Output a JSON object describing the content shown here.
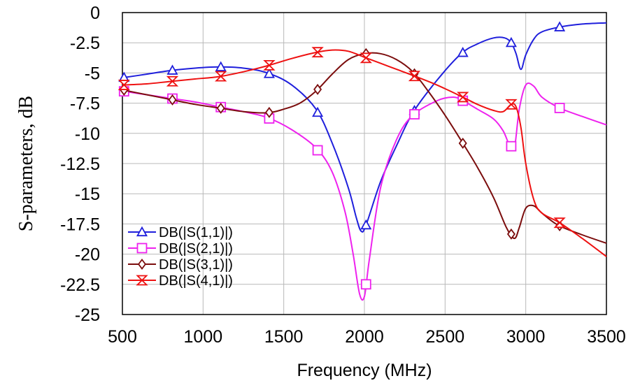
{
  "chart_data": {
    "type": "line",
    "xlabel": "Frequency (MHz)",
    "ylabel": "S-parameters, dB",
    "xlim": [
      500,
      3500
    ],
    "ylim": [
      -25,
      0
    ],
    "x_ticks": [
      500,
      1000,
      1500,
      2000,
      2500,
      3000,
      3500
    ],
    "x_tick_labels": [
      "500",
      "1000",
      "1500",
      "2000",
      "2500",
      "3000",
      "3500"
    ],
    "y_ticks": [
      0,
      -2.5,
      -5,
      -7.5,
      -10,
      -12.5,
      -15,
      -17.5,
      -20,
      -22.5,
      -25
    ],
    "y_tick_labels": [
      "0",
      "-2.5",
      "-5",
      "-7.5",
      "-10",
      "-12.5",
      "-15",
      "-17.5",
      "-20",
      "-22.5",
      "-25"
    ],
    "grid": true,
    "legend_position": "bottom-left",
    "series": [
      {
        "name": "DB(|S(1,1)|)",
        "color": "#1f1fdc",
        "marker": "triangle",
        "x": [
          500,
          650,
          800,
          950,
          1100,
          1250,
          1400,
          1550,
          1700,
          1800,
          1900,
          1950,
          1980,
          2010,
          2100,
          2200,
          2300,
          2450,
          2600,
          2700,
          2800,
          2870,
          2910,
          2940,
          2970,
          3000,
          3050,
          3100,
          3210,
          3350,
          3500
        ],
        "y": [
          -5.4,
          -5.1,
          -4.8,
          -4.6,
          -4.5,
          -4.6,
          -5.0,
          -6.0,
          -8.0,
          -10.8,
          -14.5,
          -17.0,
          -18.1,
          -17.6,
          -14.0,
          -11.0,
          -8.3,
          -5.6,
          -3.4,
          -2.6,
          -2.1,
          -2.1,
          -2.5,
          -3.4,
          -4.7,
          -3.5,
          -2.2,
          -1.6,
          -1.2,
          -0.95,
          -0.85
        ]
      },
      {
        "name": "DB(|S(2,1)|)",
        "color": "#ee22ee",
        "marker": "square",
        "x": [
          500,
          650,
          800,
          950,
          1100,
          1250,
          1400,
          1550,
          1700,
          1800,
          1880,
          1930,
          1970,
          2000,
          2030,
          2100,
          2200,
          2300,
          2450,
          2550,
          2610,
          2700,
          2800,
          2860,
          2900,
          2930,
          2960,
          3000,
          3050,
          3100,
          3210,
          3350,
          3500
        ],
        "y": [
          -6.5,
          -6.8,
          -7.1,
          -7.4,
          -7.8,
          -8.2,
          -8.7,
          -9.7,
          -11.2,
          -13.2,
          -16.5,
          -20.0,
          -23.3,
          -23.5,
          -20.5,
          -14.5,
          -10.5,
          -8.5,
          -7.3,
          -7.0,
          -7.3,
          -8.0,
          -8.8,
          -9.8,
          -11.0,
          -11.2,
          -8.0,
          -6.0,
          -6.1,
          -7.0,
          -7.9,
          -8.6,
          -9.3
        ]
      },
      {
        "name": "DB(|S(3,1)|)",
        "color": "#7b0d0d",
        "marker": "diamond",
        "x": [
          500,
          650,
          800,
          950,
          1100,
          1250,
          1400,
          1500,
          1600,
          1700,
          1800,
          1900,
          2000,
          2100,
          2200,
          2300,
          2400,
          2500,
          2600,
          2700,
          2800,
          2880,
          2930,
          2960,
          3000,
          3050,
          3100,
          3200,
          3350,
          3500
        ],
        "y": [
          -6.4,
          -6.8,
          -7.2,
          -7.6,
          -7.9,
          -8.2,
          -8.3,
          -8.0,
          -7.5,
          -6.5,
          -5.1,
          -3.9,
          -3.4,
          -3.4,
          -3.9,
          -4.9,
          -6.6,
          -8.5,
          -10.6,
          -12.8,
          -15.3,
          -17.8,
          -18.7,
          -17.8,
          -16.2,
          -16.0,
          -16.6,
          -17.6,
          -18.4,
          -19.1
        ]
      },
      {
        "name": "DB(|S(4,1)|)",
        "color": "#ee1111",
        "marker": "hourglass",
        "x": [
          500,
          650,
          800,
          950,
          1100,
          1250,
          1400,
          1550,
          1700,
          1800,
          1900,
          2000,
          2100,
          2200,
          2300,
          2450,
          2610,
          2700,
          2800,
          2860,
          2910,
          2940,
          2970,
          3000,
          3050,
          3100,
          3210,
          3350,
          3500
        ],
        "y": [
          -6.0,
          -5.9,
          -5.7,
          -5.5,
          -5.3,
          -4.9,
          -4.4,
          -3.8,
          -3.3,
          -3.1,
          -3.2,
          -3.7,
          -4.2,
          -4.7,
          -5.2,
          -6.0,
          -7.0,
          -7.6,
          -8.1,
          -8.2,
          -7.6,
          -7.8,
          -9.5,
          -12.5,
          -15.5,
          -16.6,
          -17.4,
          -18.7,
          -20.2
        ]
      }
    ]
  }
}
